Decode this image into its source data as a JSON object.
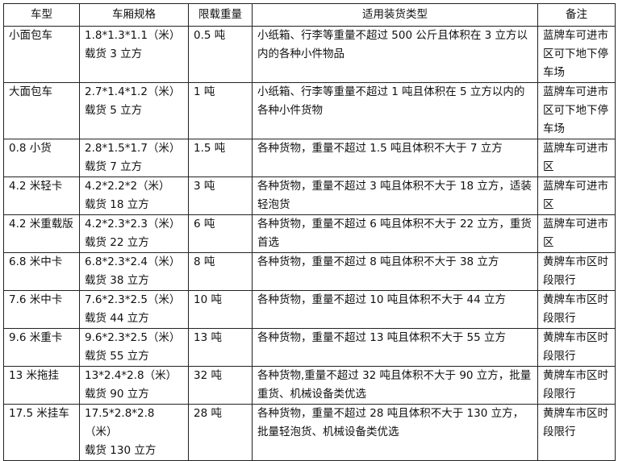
{
  "headers": [
    "车型",
    "车厢规格",
    "限载重量",
    "适用装货类型",
    "备注"
  ],
  "rows": [
    {
      "type": "小面包车",
      "size": "1.8*1.3*1.1（米）",
      "volume": "载货 3 立方",
      "weight": "0.5 吨",
      "cargo": "小纸箱、行李等重量不超过 500 公斤且体积在 3 立方以内的各种小件物品",
      "note": "蓝牌车可进市区可下地下停车场"
    },
    {
      "type": "大面包车",
      "size": "2.7*1.4*1.2（米）",
      "volume": "载货 5 立方",
      "weight": "1 吨",
      "cargo": "小纸箱、行李等重量不超过 1 吨且体积在 5 立方以内的各种小件货物",
      "note": "蓝牌车可进市区可下地下停车场"
    },
    {
      "type": "0.8 小货",
      "size": "2.8*1.5*1.7（米）",
      "volume": "载货 7 立方",
      "weight": "1.5 吨",
      "cargo": "各种货物，重量不超过 1.5 吨且体积不大于 7 立方",
      "note": "蓝牌车可进市区"
    },
    {
      "type": "4.2 米轻卡",
      "size": "4.2*2.2*2（米）",
      "volume": "载货 18 立方",
      "weight": "3 吨",
      "cargo": "各种货物，重量不超过 3 吨且体积不大于 18 立方，适装轻泡货",
      "note": "蓝牌车可进市区"
    },
    {
      "type": "4.2 米重载版",
      "size": "4.2*2.3*2.3（米）",
      "volume": "载货 22 立方",
      "weight": "6 吨",
      "cargo": "各种货物，重量不超过 6 吨且体积不大于 22 立方，重货首选",
      "note": "蓝牌车可进市区"
    },
    {
      "type": "6.8 米中卡",
      "size": "6.8*2.3*2.4（米）",
      "volume": "载货 38 立方",
      "weight": "8 吨",
      "cargo": "各种货物，重量不超过 8 吨且体积不大于 38 立方",
      "note": "黄牌车市区时段限行"
    },
    {
      "type": "7.6 米中卡",
      "size": "7.6*2.3*2.5（米）",
      "volume": "载货 44 立方",
      "weight": "10 吨",
      "cargo": "各种货物，重量不超过 10 吨且体积不大于 44 立方",
      "note": "黄牌车市区时段限行"
    },
    {
      "type": "9.6 米重卡",
      "size": "9.6*2.3*2.5（米）",
      "volume": "载货 55 立方",
      "weight": "13 吨",
      "cargo": "各种货物，重量不超过 13 吨且体积不大于 55 立方",
      "note": "黄牌车市区时段限行"
    },
    {
      "type": "13 米拖挂",
      "size": "13*2.4*2.8（米）",
      "volume": "载货 90 立方",
      "weight": "32 吨",
      "cargo": "各种货物,重量不超过 32 吨且体积不大于 90 立方，批量重货、机械设备类优选",
      "note": "黄牌车市区时段限行"
    },
    {
      "type": "17.5 米挂车",
      "size": "17.5*2.8*2.8（米）",
      "volume": "载货 130 立方",
      "weight": "28 吨",
      "cargo": "各种货物，重量不超过 28 吨且体积不大于 130 立方，批量轻泡货、机械设备类优选",
      "note": "黄牌车市区时段限行"
    }
  ]
}
